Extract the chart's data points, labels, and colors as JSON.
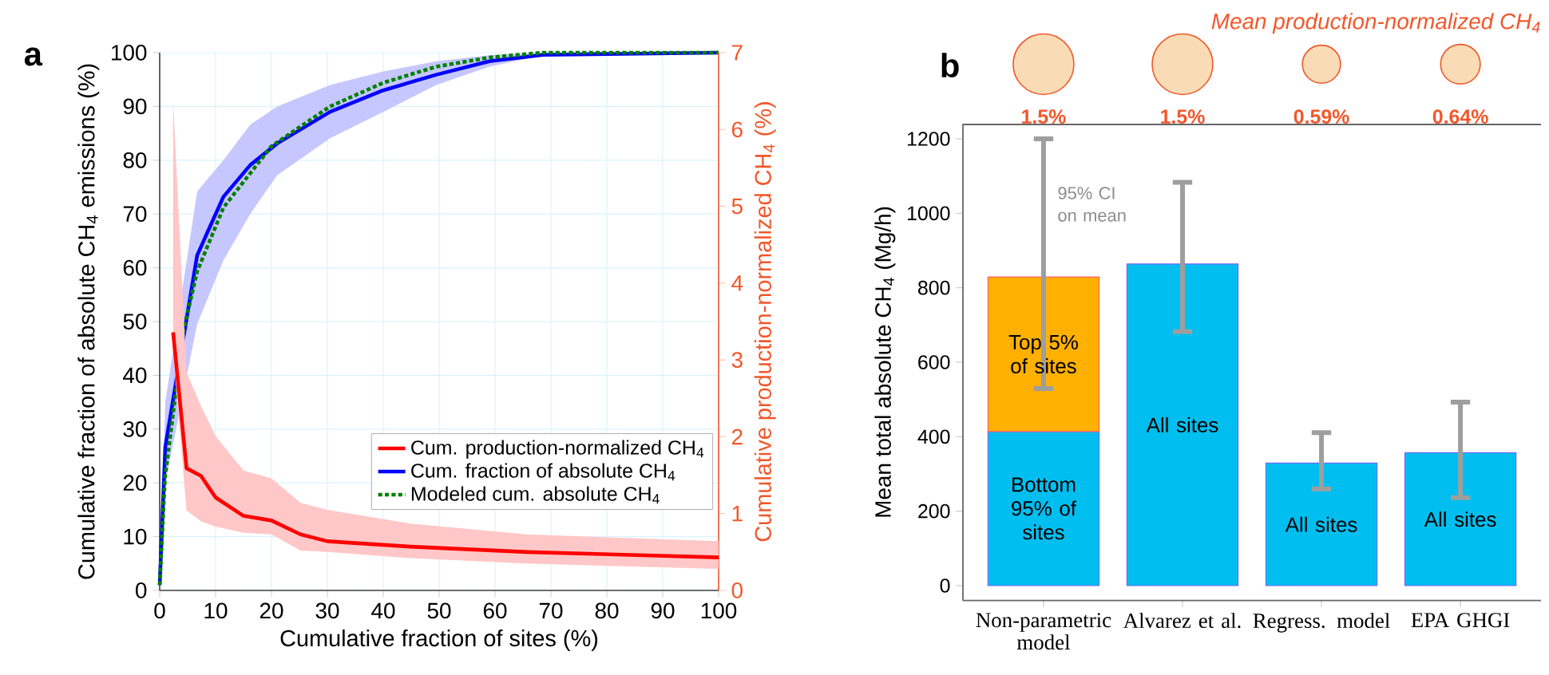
{
  "chart_data": [
    {
      "type": "line",
      "title": "a",
      "xlabel": "Cumulative fraction of sites (%)",
      "ylabel": "Cumulative fraction of absolute CH$_{4}$ emissions (%)",
      "y2label": "Cumulative production-normalized CH$_{4}$ (%)",
      "xlim": [
        0,
        100
      ],
      "xticks": [
        0,
        10,
        20,
        30,
        40,
        50,
        60,
        70,
        80,
        90,
        100
      ],
      "ylim": [
        0,
        100
      ],
      "yticks": [
        0,
        10,
        20,
        30,
        40,
        50,
        60,
        70,
        80,
        90,
        100
      ],
      "y2lim": [
        0,
        7
      ],
      "y2ticks": [
        0,
        1,
        2,
        3,
        4,
        5,
        6,
        7
      ],
      "grid": true,
      "legend": "bottom right",
      "series": [
        {
          "name": "Cum. production-normalized CH$_{4}$",
          "color": "#ff0000",
          "axis": "y2",
          "line_style": "solid",
          "x": [
            2.4,
            4.8,
            7.4,
            10,
            15,
            20,
            25.2,
            30,
            44.8,
            65.7,
            100
          ],
          "values": [
            3.36,
            1.59,
            1.49,
            1.21,
            0.97,
            0.91,
            0.73,
            0.64,
            0.57,
            0.5,
            0.43
          ],
          "lower": [
            3.1,
            1.04,
            0.9,
            0.83,
            0.75,
            0.73,
            0.52,
            0.5,
            0.42,
            0.35,
            0.28
          ],
          "upper": [
            6.38,
            2.84,
            2.4,
            2.01,
            1.56,
            1.46,
            1.14,
            1.05,
            0.87,
            0.73,
            0.64
          ]
        },
        {
          "name": "Cum. fraction of absolute CH$_{4}$",
          "color": "#0000ff",
          "line_style": "solid",
          "x": [
            0,
            1,
            6.7,
            11.4,
            16.2,
            21,
            30.5,
            40,
            49.5,
            59,
            68.6,
            100
          ],
          "values": [
            1,
            26.7,
            62.3,
            73.2,
            79.1,
            83.1,
            89,
            93,
            95.9,
            98.4,
            99.6,
            100
          ],
          "lower": [
            1,
            20,
            49.5,
            61.4,
            70,
            77.2,
            84.1,
            89,
            94,
            97.4,
            99.5,
            100
          ],
          "upper": [
            1,
            35,
            74.2,
            80,
            86.6,
            90,
            94,
            96.5,
            98.4,
            99.5,
            100,
            100
          ]
        },
        {
          "name": "Modeled cum. absolute CH$_{4}$",
          "color": "#008000",
          "line_style": "dotted",
          "x": [
            0,
            0.95,
            4.3,
            6.7,
            11.4,
            20,
            30.5,
            40,
            49.5,
            59,
            68.6,
            100
          ],
          "values": [
            1,
            21,
            48.5,
            59.3,
            71.2,
            82.6,
            90,
            94.4,
            97.4,
            99.1,
            100,
            100
          ]
        }
      ]
    },
    {
      "type": "bar",
      "title": "b",
      "stacked": true,
      "ylabel": "Mean total absolute CH$_{4}$ (Mg/h)",
      "categories": [
        "Non-parametric model",
        "Alvarez et al.",
        "Regress. model",
        "EPA GHGI"
      ],
      "ylim": [
        -40,
        1240
      ],
      "yticks": [
        0,
        200,
        400,
        600,
        800,
        1000,
        1200
      ],
      "annotations": [
        "95% CI on mean"
      ],
      "series": [
        {
          "color": "#00bff0",
          "values": [
            414,
            864,
            329,
            357
          ],
          "value_labels": [
            "Bottom 95% of sites",
            "All sites",
            "All sites",
            "All sites"
          ],
          "errors": [
            null,
            [
              682,
              1083
            ],
            [
              260,
              411
            ],
            [
              236,
              493
            ]
          ]
        },
        {
          "color": "#ffb000",
          "values": [
            415,
            null,
            null,
            null
          ],
          "value_labels": [
            "Top 5% of sites",
            null,
            null,
            null
          ],
          "errors": [
            [
              529,
              1200
            ],
            null,
            null,
            null
          ]
        }
      ]
    },
    {
      "type": "other",
      "categories": [
        null,
        null,
        null,
        null
      ],
      "data_labels": true,
      "annotations": [
        "Mean production-normalized CH$_{4}$"
      ],
      "series": [
        {
          "color": "#f9dcb5",
          "values": [
            1.5,
            1.5,
            0.59,
            0.64
          ],
          "value_labels": [
            "1.5%",
            "1.5%",
            "0.59%",
            "0.64%"
          ]
        }
      ]
    }
  ]
}
